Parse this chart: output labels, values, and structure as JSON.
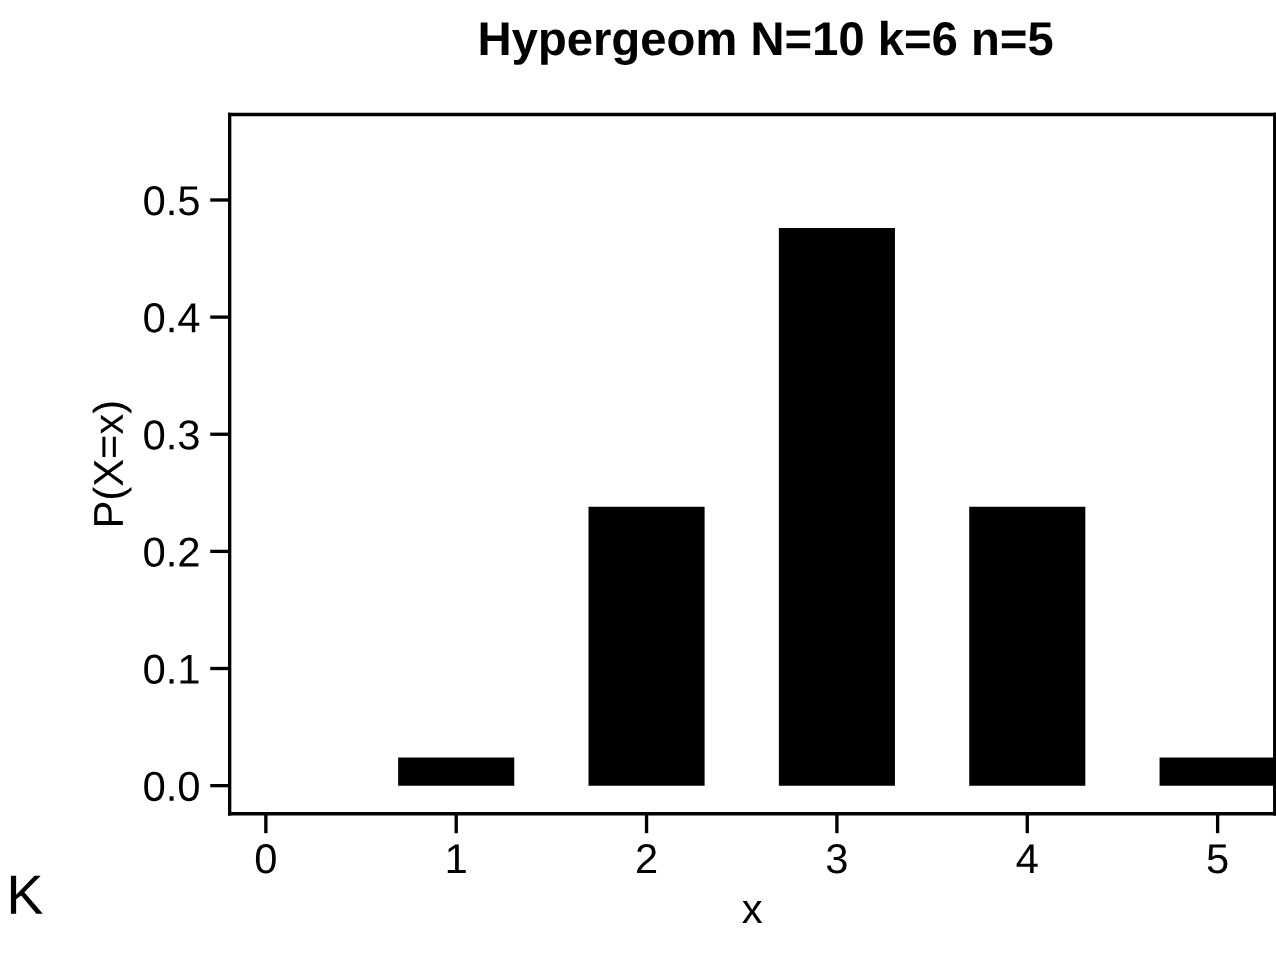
{
  "chart_data": {
    "type": "bar",
    "title": "Hypergeom N=10 k=6 n=5",
    "xlabel": "x",
    "ylabel": "P(X=x)",
    "x": [
      0,
      1,
      2,
      3,
      4,
      5
    ],
    "values": [
      0,
      0.024,
      0.238,
      0.476,
      0.238,
      0.024
    ],
    "color": "#000000",
    "xlim": [
      -0.19,
      5.3
    ],
    "xticks": [
      0,
      1,
      2,
      3,
      4,
      5
    ],
    "ylim": [
      -0.024,
      0.573
    ],
    "yticks": [
      {
        "value": 0,
        "label": "0.0"
      },
      0.1,
      0.2,
      0.3,
      0.4,
      0.5
    ],
    "grid": false,
    "legend": false,
    "annotations": [
      "K"
    ]
  }
}
